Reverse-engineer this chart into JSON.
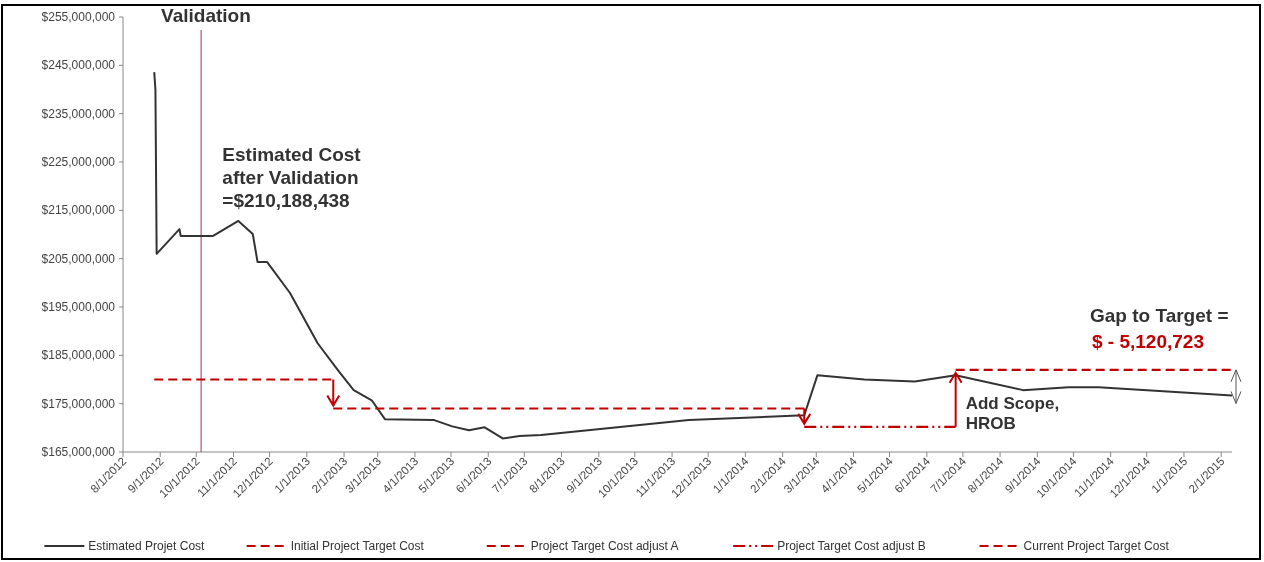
{
  "chart_data": {
    "type": "line",
    "x": [
      "2012-08-27",
      "2012-08-28",
      "2012-08-29",
      "2012-09-17",
      "2012-09-18",
      "2012-10-15",
      "2012-11-05",
      "2012-11-17",
      "2012-11-21",
      "2012-11-29",
      "2012-12-18",
      "2013-01-10",
      "2013-01-27",
      "2013-02-09",
      "2013-02-24",
      "2013-03-07",
      "2013-04-17",
      "2013-05-02",
      "2013-05-16",
      "2013-05-29",
      "2013-06-13",
      "2013-06-27",
      "2013-07-15",
      "2013-11-15",
      "2014-02-19",
      "2014-03-02",
      "2014-04-10",
      "2014-05-22",
      "2014-06-25",
      "2014-08-20",
      "2014-09-27",
      "2014-10-22",
      "2015-02-10"
    ],
    "series": [
      {
        "name": "Estimated Projet Cost",
        "color": "#333333",
        "line_style": "solid",
        "values": [
          243600000,
          239900000,
          206000000,
          211100000,
          209700000,
          209700000,
          212800000,
          210100000,
          204300000,
          204300000,
          197900000,
          187500000,
          181900000,
          177800000,
          175700000,
          171800000,
          171600000,
          170300000,
          169500000,
          170100000,
          167800000,
          168300000,
          168500000,
          171600000,
          172600000,
          180900000,
          180000000,
          179600000,
          180900000,
          177800000,
          178400000,
          178400000,
          176700000
        ]
      },
      {
        "name": "Initial Project Target Cost",
        "color": "#c00000",
        "line_style": "dashed",
        "x": [
          "2012-08-27",
          "2013-01-23"
        ],
        "values": [
          180000000,
          180000000
        ]
      },
      {
        "name": "Project Target Cost adjust A",
        "color": "#c00000",
        "line_style": "dashed",
        "x": [
          "2013-01-23",
          "2014-02-19"
        ],
        "values": [
          174000000,
          174000000
        ]
      },
      {
        "name": "Project Target Cost adjust B",
        "color": "#c00000",
        "line_style": "dotted",
        "x": [
          "2014-02-19",
          "2014-06-25"
        ],
        "values": [
          170200000,
          170200000
        ]
      },
      {
        "name": "Current Project Target Cost",
        "color": "#c00000",
        "line_style": "dashed",
        "x": [
          "2014-06-25",
          "2015-02-10"
        ],
        "values": [
          182000000,
          182000000
        ]
      }
    ],
    "xlim": [
      "2012-08-01",
      "2015-02-10"
    ],
    "xticks": [
      {
        "value": "2012-08-01",
        "label": "8/1/2012"
      },
      {
        "value": "2012-09-01",
        "label": "9/1/2012"
      },
      {
        "value": "2012-10-01",
        "label": "10/1/2012"
      },
      {
        "value": "2012-11-01",
        "label": "11/1/2012"
      },
      {
        "value": "2012-12-01",
        "label": "12/1/2012"
      },
      {
        "value": "2013-01-01",
        "label": "1/1/2013"
      },
      {
        "value": "2013-02-01",
        "label": "2/1/2013"
      },
      {
        "value": "2013-03-01",
        "label": "3/1/2013"
      },
      {
        "value": "2013-04-01",
        "label": "4/1/2013"
      },
      {
        "value": "2013-05-01",
        "label": "5/1/2013"
      },
      {
        "value": "2013-06-01",
        "label": "6/1/2013"
      },
      {
        "value": "2013-07-01",
        "label": "7/1/2013"
      },
      {
        "value": "2013-08-01",
        "label": "8/1/2013"
      },
      {
        "value": "2013-09-01",
        "label": "9/1/2013"
      },
      {
        "value": "2013-10-01",
        "label": "10/1/2013"
      },
      {
        "value": "2013-11-01",
        "label": "11/1/2013"
      },
      {
        "value": "2013-12-01",
        "label": "12/1/2013"
      },
      {
        "value": "2014-01-01",
        "label": "1/1/2014"
      },
      {
        "value": "2014-02-01",
        "label": "2/1/2014"
      },
      {
        "value": "2014-03-01",
        "label": "3/1/2014"
      },
      {
        "value": "2014-04-01",
        "label": "4/1/2014"
      },
      {
        "value": "2014-05-01",
        "label": "5/1/2014"
      },
      {
        "value": "2014-06-01",
        "label": "6/1/2014"
      },
      {
        "value": "2014-07-01",
        "label": "7/1/2014"
      },
      {
        "value": "2014-08-01",
        "label": "8/1/2014"
      },
      {
        "value": "2014-09-01",
        "label": "9/1/2014"
      },
      {
        "value": "2014-10-01",
        "label": "10/1/2014"
      },
      {
        "value": "2014-11-01",
        "label": "11/1/2014"
      },
      {
        "value": "2014-12-01",
        "label": "12/1/2014"
      },
      {
        "value": "2015-01-01",
        "label": "1/1/2015"
      },
      {
        "value": "2015-02-01",
        "label": "2/1/2015"
      }
    ],
    "ylim": [
      165000000,
      255000000
    ],
    "yticks": [
      {
        "value": 165000000,
        "label": "$165,000,000"
      },
      {
        "value": 175000000,
        "label": "$175,000,000"
      },
      {
        "value": 185000000,
        "label": "$185,000,000"
      },
      {
        "value": 195000000,
        "label": "$195,000,000"
      },
      {
        "value": 205000000,
        "label": "$205,000,000"
      },
      {
        "value": 215000000,
        "label": "$215,000,000"
      },
      {
        "value": 225000000,
        "label": "$225,000,000"
      },
      {
        "value": 235000000,
        "label": "$235,000,000"
      },
      {
        "value": 245000000,
        "label": "$245,000,000"
      },
      {
        "value": 255000000,
        "label": "$255,000,000"
      }
    ],
    "ref_lines": [
      {
        "axis": "x",
        "value": "2012-10-05",
        "label": "Validation",
        "color": "#993366"
      }
    ],
    "annotations": [
      {
        "text": "Estimated Cost\nafter Validation\n=$210,188,438",
        "x": "2012-11-05",
        "y": 212800000
      },
      {
        "text": "Add Scope,\nHROB",
        "x": "2014-06-25",
        "y": 170200000
      },
      "Gap to Target =",
      "$ - 5,120,723"
    ],
    "grid": false,
    "legend": "bottom"
  }
}
